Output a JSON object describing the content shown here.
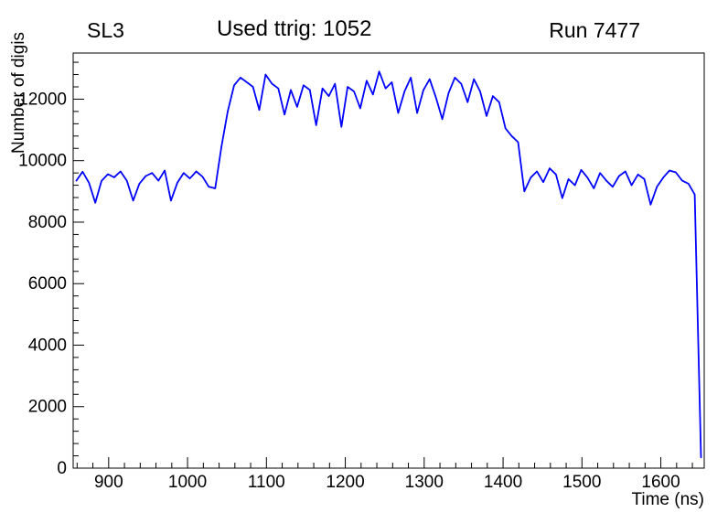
{
  "header": {
    "left_label": "SL3",
    "right_label": "Run 7477"
  },
  "chart_data": {
    "type": "line",
    "title": "Used ttrig: 1052",
    "xlabel": "Time (ns)",
    "ylabel": "Number of digis",
    "xlim": [
      855,
      1655
    ],
    "ylim": [
      0,
      13500
    ],
    "x_major_ticks": [
      900,
      1000,
      1100,
      1200,
      1300,
      1400,
      1500,
      1600
    ],
    "x_minor_step": 20,
    "y_major_ticks": [
      0,
      2000,
      4000,
      6000,
      8000,
      10000,
      12000
    ],
    "y_minor_step": 400,
    "grid": false,
    "legend": "none",
    "line_color": "#0000ff",
    "series": [
      {
        "name": "number-of-digis-vs-time",
        "points": [
          [
            859,
            9350
          ],
          [
            867,
            9640
          ],
          [
            875,
            9280
          ],
          [
            883,
            8630
          ],
          [
            891,
            9340
          ],
          [
            899,
            9560
          ],
          [
            907,
            9460
          ],
          [
            915,
            9650
          ],
          [
            923,
            9350
          ],
          [
            931,
            8700
          ],
          [
            939,
            9250
          ],
          [
            947,
            9500
          ],
          [
            955,
            9600
          ],
          [
            963,
            9350
          ],
          [
            971,
            9680
          ],
          [
            979,
            8700
          ],
          [
            987,
            9280
          ],
          [
            995,
            9600
          ],
          [
            1003,
            9420
          ],
          [
            1011,
            9650
          ],
          [
            1019,
            9480
          ],
          [
            1027,
            9150
          ],
          [
            1035,
            9100
          ],
          [
            1043,
            10450
          ],
          [
            1051,
            11600
          ],
          [
            1059,
            12450
          ],
          [
            1067,
            12700
          ],
          [
            1075,
            12550
          ],
          [
            1083,
            12400
          ],
          [
            1091,
            11650
          ],
          [
            1099,
            12800
          ],
          [
            1107,
            12500
          ],
          [
            1115,
            12350
          ],
          [
            1123,
            11500
          ],
          [
            1131,
            12300
          ],
          [
            1139,
            11750
          ],
          [
            1147,
            12450
          ],
          [
            1155,
            12300
          ],
          [
            1163,
            11150
          ],
          [
            1171,
            12350
          ],
          [
            1179,
            12100
          ],
          [
            1187,
            12500
          ],
          [
            1195,
            11100
          ],
          [
            1203,
            12400
          ],
          [
            1211,
            12250
          ],
          [
            1219,
            11700
          ],
          [
            1227,
            12600
          ],
          [
            1235,
            12150
          ],
          [
            1243,
            12900
          ],
          [
            1251,
            12350
          ],
          [
            1259,
            12550
          ],
          [
            1267,
            11550
          ],
          [
            1275,
            12250
          ],
          [
            1283,
            12700
          ],
          [
            1291,
            11550
          ],
          [
            1299,
            12300
          ],
          [
            1307,
            12650
          ],
          [
            1315,
            12050
          ],
          [
            1323,
            11350
          ],
          [
            1331,
            12200
          ],
          [
            1339,
            12700
          ],
          [
            1347,
            12500
          ],
          [
            1355,
            11900
          ],
          [
            1363,
            12650
          ],
          [
            1371,
            12250
          ],
          [
            1379,
            11450
          ],
          [
            1387,
            12100
          ],
          [
            1395,
            11900
          ],
          [
            1403,
            11050
          ],
          [
            1411,
            10800
          ],
          [
            1419,
            10600
          ],
          [
            1427,
            9000
          ],
          [
            1435,
            9450
          ],
          [
            1443,
            9650
          ],
          [
            1451,
            9300
          ],
          [
            1459,
            9750
          ],
          [
            1467,
            9550
          ],
          [
            1475,
            8780
          ],
          [
            1483,
            9400
          ],
          [
            1491,
            9200
          ],
          [
            1499,
            9700
          ],
          [
            1507,
            9450
          ],
          [
            1515,
            9100
          ],
          [
            1523,
            9600
          ],
          [
            1531,
            9350
          ],
          [
            1539,
            9150
          ],
          [
            1547,
            9500
          ],
          [
            1555,
            9650
          ],
          [
            1563,
            9200
          ],
          [
            1571,
            9550
          ],
          [
            1579,
            9400
          ],
          [
            1587,
            8570
          ],
          [
            1595,
            9150
          ],
          [
            1603,
            9450
          ],
          [
            1611,
            9680
          ],
          [
            1619,
            9620
          ],
          [
            1627,
            9350
          ],
          [
            1635,
            9250
          ],
          [
            1643,
            8900
          ],
          [
            1651,
            350
          ]
        ]
      }
    ]
  }
}
